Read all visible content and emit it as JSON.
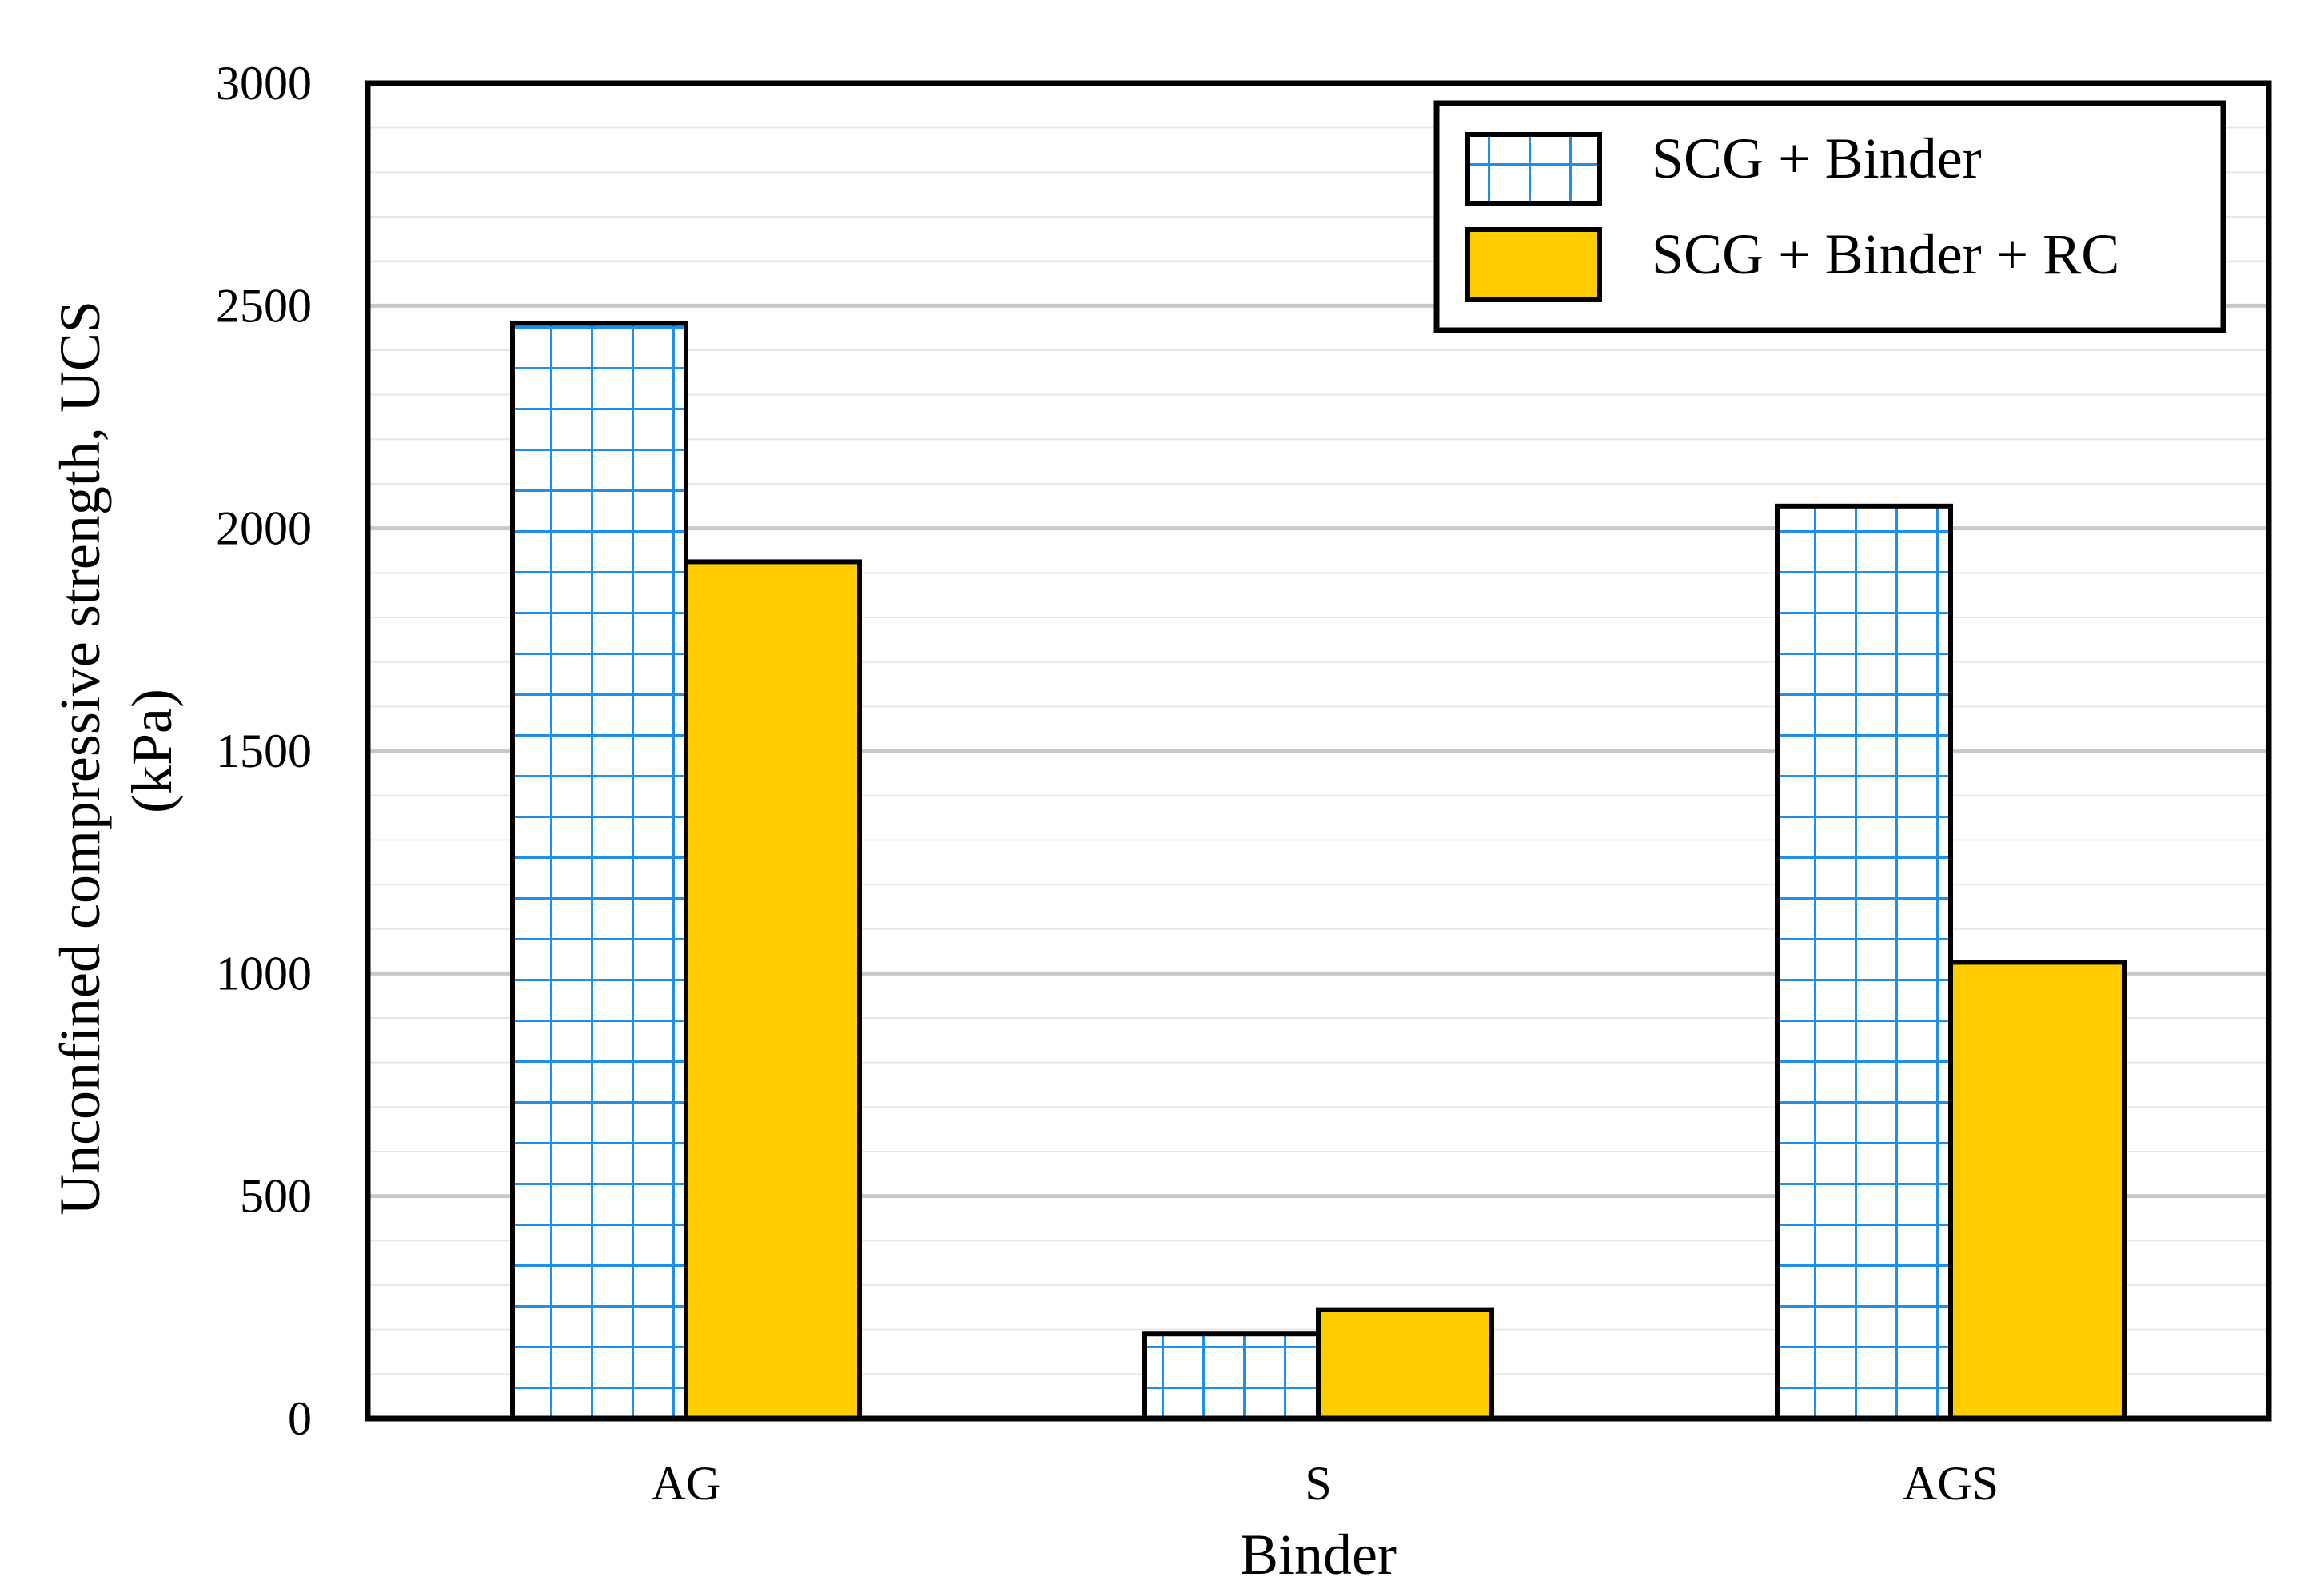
{
  "chart_data": {
    "type": "bar",
    "title": "",
    "xlabel": "Binder",
    "ylabel_lines": [
      "Unconfined compressive strength, UCS",
      "(kPa)"
    ],
    "categories": [
      "AG",
      "S",
      "AGS"
    ],
    "ylim": [
      0,
      3000
    ],
    "yticks": [
      0,
      500,
      1000,
      1500,
      2000,
      2500,
      3000
    ],
    "minor_grid_step": 100,
    "grid": true,
    "legend_position": "top-right",
    "series": [
      {
        "name": "SCG + Binder",
        "values": [
          2460,
          190,
          2050
        ],
        "pattern": "grid-hatch"
      },
      {
        "name": "SCG + Binder + RC",
        "values": [
          1925,
          245,
          1025
        ],
        "pattern": "solid"
      }
    ],
    "colors": {
      "hatch": "#1f8fe8",
      "fill_rc": "#ffcc00",
      "major_grid": "#c8c8c8",
      "minor_grid": "#e6e6e6",
      "axis": "#000000"
    }
  }
}
